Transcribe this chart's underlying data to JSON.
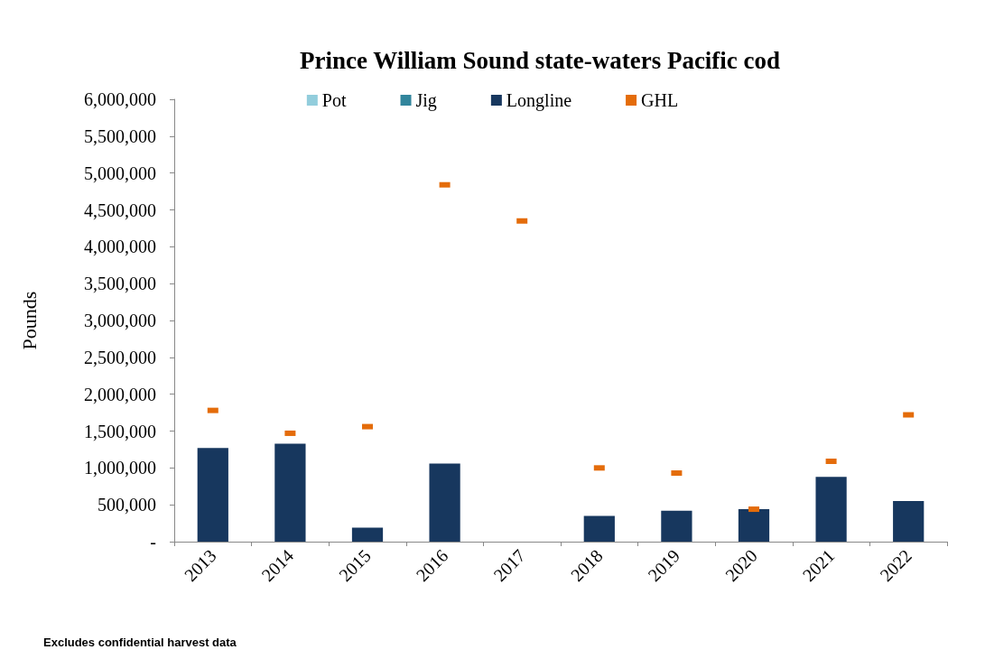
{
  "chart_data": {
    "type": "bar",
    "title": "Prince William Sound state-waters Pacific cod",
    "ylabel": "Pounds",
    "categories": [
      "2013",
      "2014",
      "2015",
      "2016",
      "2017",
      "2018",
      "2019",
      "2020",
      "2021",
      "2022"
    ],
    "series": [
      {
        "name": "Pot",
        "color": "#92cddc",
        "values": [
          null,
          null,
          null,
          null,
          null,
          null,
          null,
          null,
          null,
          null
        ]
      },
      {
        "name": "Jig",
        "color": "#31859c",
        "values": [
          null,
          null,
          null,
          null,
          null,
          null,
          null,
          null,
          null,
          null
        ]
      },
      {
        "name": "Longline",
        "color": "#17375e",
        "values": [
          1270000,
          1330000,
          190000,
          1060000,
          null,
          350000,
          420000,
          440000,
          880000,
          550000
        ]
      },
      {
        "name": "GHL",
        "type": "scatter",
        "marker": "square",
        "color": "#e46c0a",
        "values": [
          1780000,
          1470000,
          1560000,
          4840000,
          4350000,
          1000000,
          930000,
          440000,
          1090000,
          1720000
        ]
      }
    ],
    "stacked": true,
    "ylim": [
      0,
      6000000
    ],
    "yticks": [
      {
        "value": 0,
        "label": "-"
      },
      {
        "value": 500000,
        "label": "500,000"
      },
      {
        "value": 1000000,
        "label": "1,000,000"
      },
      {
        "value": 1500000,
        "label": "1,500,000"
      },
      {
        "value": 2000000,
        "label": "2,000,000"
      },
      {
        "value": 2500000,
        "label": "2,500,000"
      },
      {
        "value": 3000000,
        "label": "3,000,000"
      },
      {
        "value": 3500000,
        "label": "3,500,000"
      },
      {
        "value": 4000000,
        "label": "4,000,000"
      },
      {
        "value": 4500000,
        "label": "4,500,000"
      },
      {
        "value": 5000000,
        "label": "5,000,000"
      },
      {
        "value": 5500000,
        "label": "5,500,000"
      },
      {
        "value": 6000000,
        "label": "6,000,000"
      }
    ],
    "grid": false,
    "legend": "top",
    "annotations": [
      "Excludes confidential harvest data"
    ]
  }
}
